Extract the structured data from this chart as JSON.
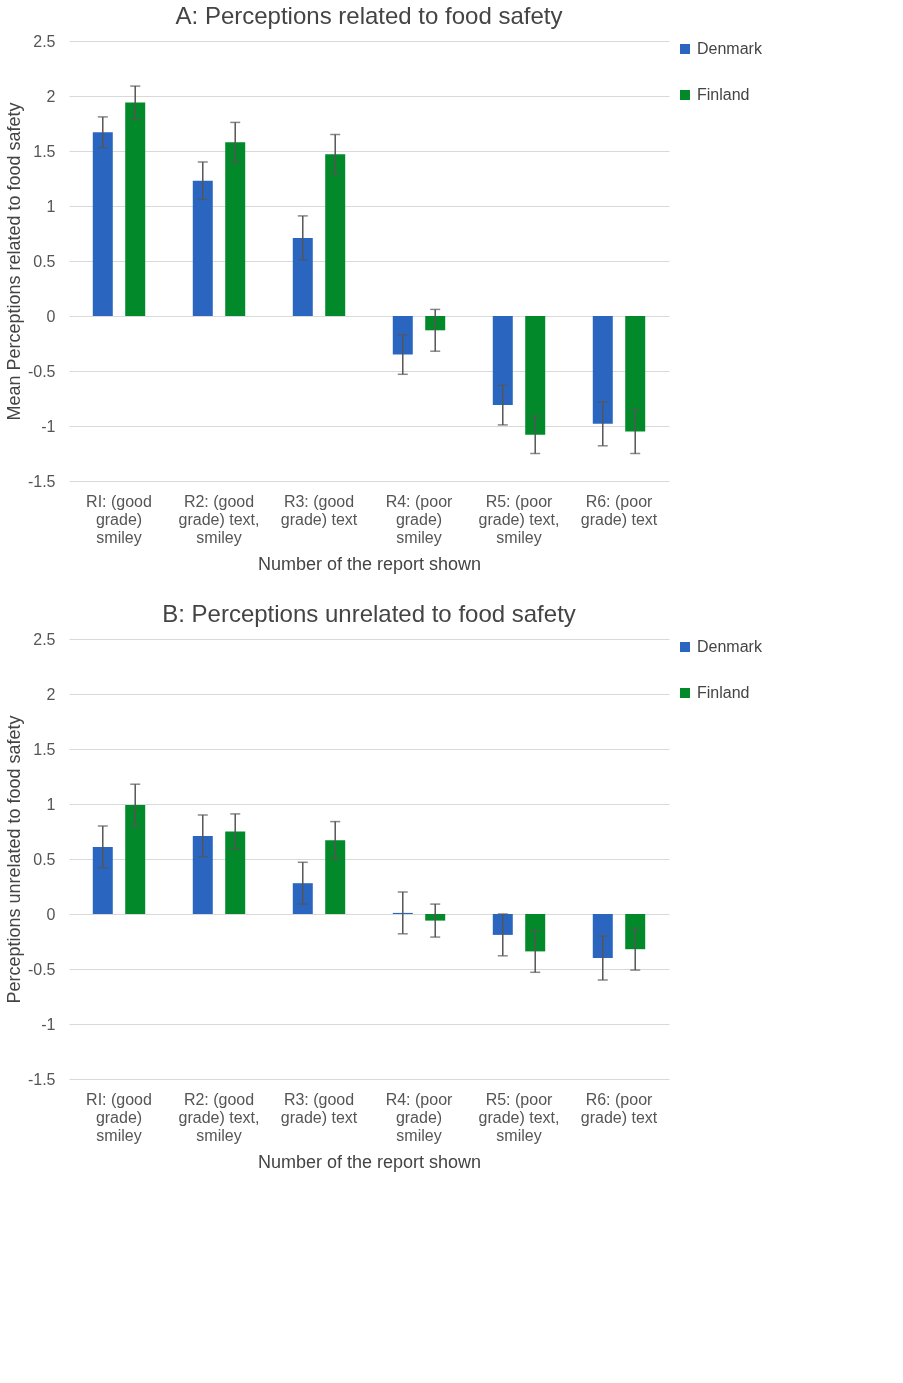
{
  "chart_data": [
    {
      "type": "bar",
      "title": "A: Perceptions related to food safety",
      "xlabel": "Number of the report shown",
      "ylabel": "Mean Perceptions related to food safety",
      "categories": [
        "RI: (good grade) smiley",
        "R2: (good grade) text, smiley",
        "R3: (good grade) text",
        "R4: (poor grade) smiley",
        "R5: (poor grade) text, smiley",
        "R6: (poor grade) text"
      ],
      "series": [
        {
          "name": "Denmark",
          "color": "#2a66c0",
          "values": [
            1.67,
            1.23,
            0.71,
            -0.35,
            -0.81,
            -0.98
          ],
          "errors": [
            0.14,
            0.17,
            0.2,
            0.18,
            0.18,
            0.2
          ]
        },
        {
          "name": "Finland",
          "color": "#028a2a",
          "values": [
            1.94,
            1.58,
            1.47,
            -0.13,
            -1.08,
            -1.05
          ],
          "errors": [
            0.15,
            0.18,
            0.18,
            0.19,
            0.17,
            0.2
          ]
        }
      ],
      "ylim": [
        -1.5,
        2.5
      ],
      "yticks": [
        -1.5,
        -1,
        -0.5,
        0,
        0.5,
        1,
        1.5,
        2,
        2.5
      ],
      "grid": "y",
      "legend": "right"
    },
    {
      "type": "bar",
      "title": "B: Perceptions unrelated to food safety",
      "xlabel": "Number of the report shown",
      "ylabel": "Perceptions unrelated to food safety",
      "categories": [
        "RI: (good grade) smiley",
        "R2: (good grade) text, smiley",
        "R3: (good grade) text",
        "R4: (poor grade) smiley",
        "R5: (poor grade) text, smiley",
        "R6: (poor grade) text"
      ],
      "series": [
        {
          "name": "Denmark",
          "color": "#2a66c0",
          "values": [
            0.61,
            0.71,
            0.28,
            0.01,
            -0.19,
            -0.4
          ],
          "errors": [
            0.19,
            0.19,
            0.19,
            0.19,
            0.19,
            0.2
          ]
        },
        {
          "name": "Finland",
          "color": "#028a2a",
          "values": [
            0.99,
            0.75,
            0.67,
            -0.06,
            -0.34,
            -0.32
          ],
          "errors": [
            0.19,
            0.16,
            0.17,
            0.15,
            0.19,
            0.19
          ]
        }
      ],
      "ylim": [
        -1.5,
        2.5
      ],
      "yticks": [
        -1.5,
        -1,
        -0.5,
        0,
        0.5,
        1,
        1.5,
        2,
        2.5
      ],
      "grid": "y",
      "legend": "right"
    }
  ]
}
